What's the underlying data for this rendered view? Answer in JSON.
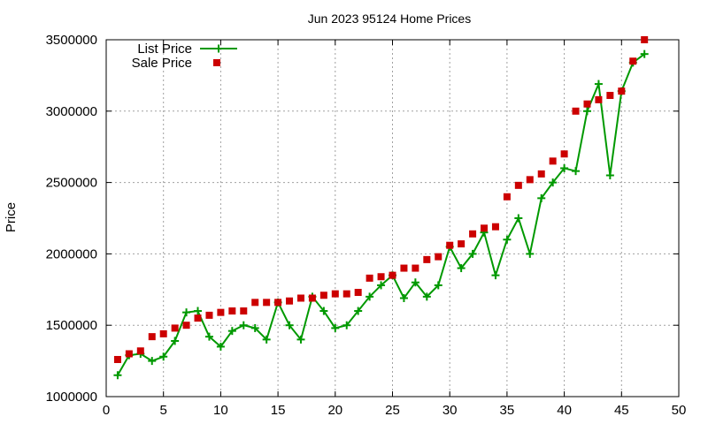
{
  "chart_data": {
    "type": "line",
    "title": "Jun 2023 95124 Home Prices",
    "xlabel": "",
    "ylabel": "Price",
    "xlim": [
      0,
      50
    ],
    "ylim": [
      1000000,
      3500000
    ],
    "xticks": [
      0,
      5,
      10,
      15,
      20,
      25,
      30,
      35,
      40,
      45,
      50
    ],
    "yticks": [
      1000000,
      1500000,
      2000000,
      2500000,
      3000000,
      3500000
    ],
    "grid": true,
    "legend_position": "top-left",
    "series": [
      {
        "name": "List Price",
        "style": "line-cross",
        "color": "#009900",
        "x": [
          1,
          2,
          3,
          4,
          5,
          6,
          7,
          8,
          9,
          10,
          11,
          12,
          13,
          14,
          15,
          16,
          17,
          18,
          19,
          20,
          21,
          22,
          23,
          24,
          25,
          26,
          27,
          28,
          29,
          30,
          31,
          32,
          33,
          34,
          35,
          36,
          37,
          38,
          39,
          40,
          41,
          42,
          43,
          44,
          45,
          46,
          47
        ],
        "y": [
          1150000,
          1290000,
          1300000,
          1250000,
          1280000,
          1390000,
          1590000,
          1600000,
          1420000,
          1350000,
          1460000,
          1500000,
          1480000,
          1400000,
          1660000,
          1500000,
          1400000,
          1700000,
          1600000,
          1480000,
          1500000,
          1600000,
          1700000,
          1780000,
          1850000,
          1690000,
          1800000,
          1700000,
          1780000,
          2050000,
          1900000,
          2000000,
          2150000,
          1850000,
          2100000,
          2250000,
          2000000,
          2390000,
          2500000,
          2600000,
          2580000,
          3000000,
          3190000,
          2550000,
          3140000,
          3340000,
          3400000
        ]
      },
      {
        "name": "Sale Price",
        "style": "square",
        "color": "#cc0000",
        "x": [
          1,
          2,
          3,
          4,
          5,
          6,
          7,
          8,
          9,
          10,
          11,
          12,
          13,
          14,
          15,
          16,
          17,
          18,
          19,
          20,
          21,
          22,
          23,
          24,
          25,
          26,
          27,
          28,
          29,
          30,
          31,
          32,
          33,
          34,
          35,
          36,
          37,
          38,
          39,
          40,
          41,
          42,
          43,
          44,
          45,
          46,
          47
        ],
        "y": [
          1260000,
          1300000,
          1320000,
          1420000,
          1440000,
          1480000,
          1500000,
          1550000,
          1570000,
          1590000,
          1600000,
          1600000,
          1660000,
          1660000,
          1660000,
          1670000,
          1690000,
          1690000,
          1710000,
          1720000,
          1720000,
          1730000,
          1830000,
          1840000,
          1850000,
          1900000,
          1900000,
          1960000,
          1980000,
          2060000,
          2070000,
          2140000,
          2180000,
          2190000,
          2400000,
          2480000,
          2520000,
          2560000,
          2650000,
          2700000,
          3000000,
          3050000,
          3080000,
          3110000,
          3140000,
          3350000,
          3500000
        ]
      }
    ]
  }
}
